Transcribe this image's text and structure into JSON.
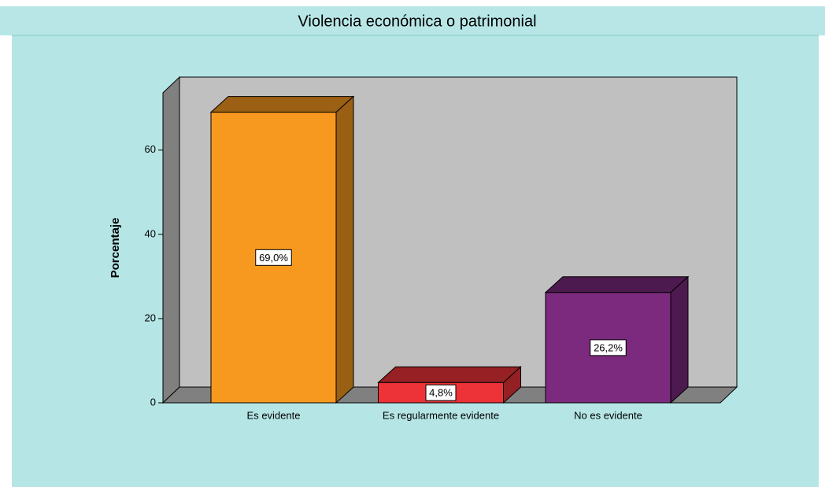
{
  "chart_data": {
    "type": "bar3d",
    "title": "Violencia económica o patrimonial",
    "y_label": "Porcentaje",
    "categories": [
      "Es evidente",
      "Es regularmente evidente",
      "No es evidente"
    ],
    "values": [
      69.0,
      4.8,
      26.2
    ],
    "value_labels": [
      "69,0%",
      "4,8%",
      "26,2%"
    ],
    "colors": [
      "#f7991f",
      "#ee3338",
      "#7b2a7d"
    ],
    "ylim": [
      0,
      73.6
    ],
    "yticks": [
      0,
      20,
      40,
      60
    ]
  }
}
